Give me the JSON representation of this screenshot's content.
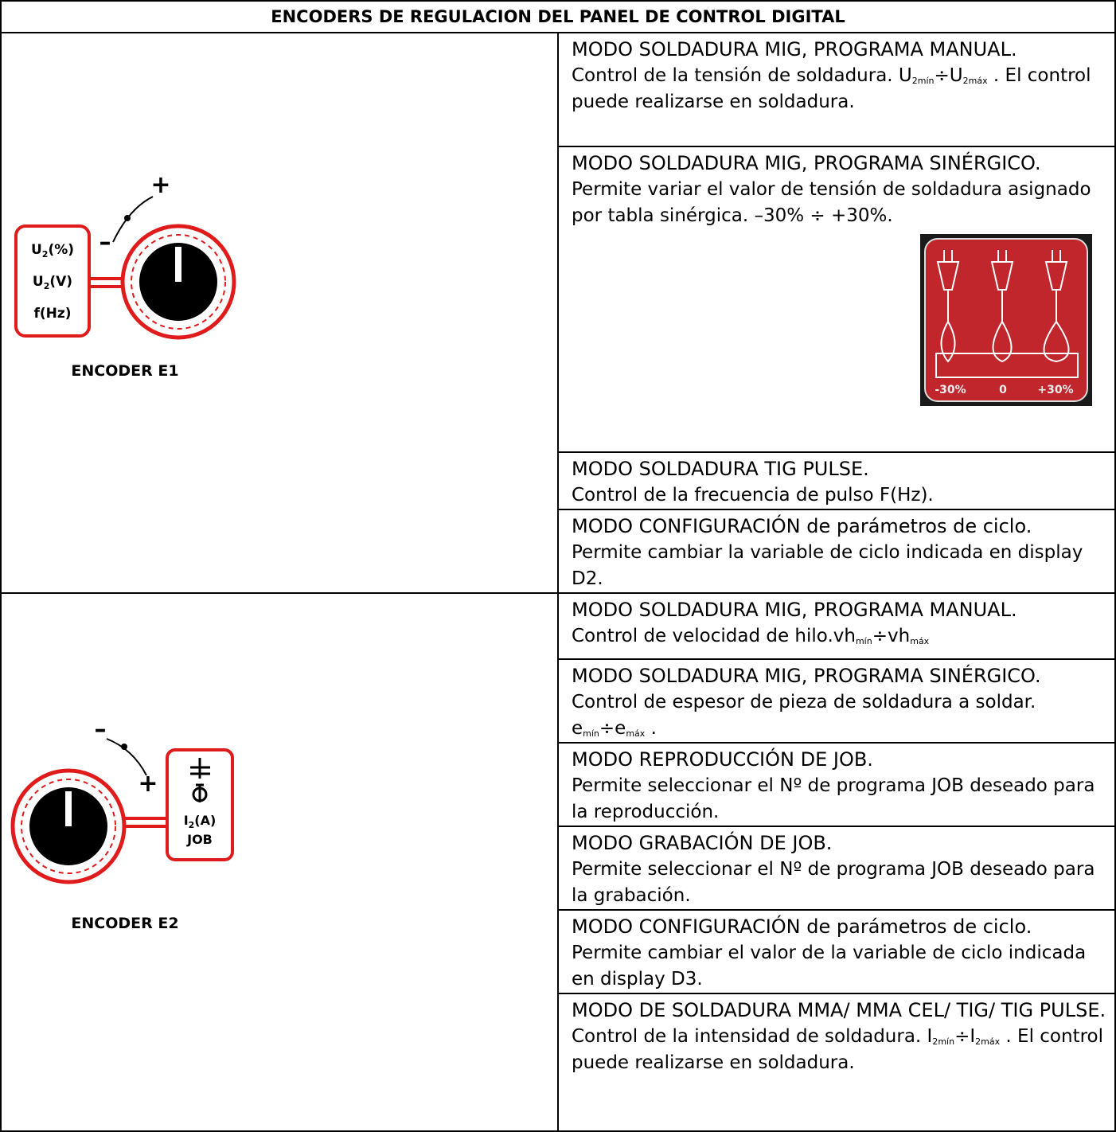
{
  "header": {
    "title": "ENCODERS DE REGULACION DEL PANEL DE CONTROL DIGITAL"
  },
  "sections": [
    {
      "encoder": {
        "label": "ENCODER E1",
        "minus": "–",
        "plus": "+",
        "labels": [
          [
            {
              "t": "U"
            },
            {
              "sub": "2"
            },
            {
              "t": "(%)"
            }
          ],
          [
            {
              "t": "U"
            },
            {
              "sub": "2"
            },
            {
              "t": "(V)"
            }
          ],
          [
            {
              "t": "f(Hz)"
            }
          ]
        ]
      },
      "rows": [
        {
          "mode": "MODO SOLDADURA MIG, PROGRAMA MANUAL.",
          "description": [
            {
              "t": "Control de la tensión de soldadura. U"
            },
            {
              "sub": "2mín"
            },
            {
              "t": "÷U"
            },
            {
              "sub": "2máx"
            },
            {
              "t": " . El control puede realizarse en soldadura."
            }
          ]
        },
        {
          "mode": "MODO SOLDADURA MIG, PROGRAMA SINÉRGICO.",
          "description": [
            {
              "t": "Permite variar el valor de tensión de soldadura asignado por tabla sinérgica. –30% ÷ +30%."
            }
          ],
          "figure": {
            "labels": [
              "-30%",
              "0",
              "+30%"
            ]
          }
        },
        {
          "mode": "MODO SOLDADURA TIG PULSE.",
          "description": [
            {
              "t": "Control de la frecuencia de pulso F(Hz)."
            }
          ]
        },
        {
          "mode": "MODO CONFIGURACIÓN de parámetros de ciclo.",
          "description": [
            {
              "t": "Permite cambiar la variable de ciclo indicada en display D2."
            }
          ]
        }
      ]
    },
    {
      "encoder": {
        "label": "ENCODER E2",
        "minus": "–",
        "plus": "+",
        "labels": [
          [
            {
              "t": "I"
            },
            {
              "sub": "2"
            },
            {
              "t": "(A)"
            }
          ],
          [
            {
              "t": "JOB"
            }
          ]
        ]
      },
      "rows": [
        {
          "mode": "MODO SOLDADURA MIG, PROGRAMA MANUAL.",
          "description": [
            {
              "t": "Control de velocidad de hilo.vh"
            },
            {
              "sub": "mín"
            },
            {
              "t": "÷vh"
            },
            {
              "sub": "máx"
            }
          ]
        },
        {
          "mode": "MODO SOLDADURA MIG, PROGRAMA SINÉRGICO.",
          "description": [
            {
              "t": "Control de espesor de pieza de soldadura a soldar. e"
            },
            {
              "sub": "mín"
            },
            {
              "t": "÷e"
            },
            {
              "sub": "máx"
            },
            {
              "t": " ."
            }
          ]
        },
        {
          "mode": "MODO REPRODUCCIÓN DE JOB.",
          "description": [
            {
              "t": "Permite seleccionar el Nº de programa JOB deseado para la reproducción."
            }
          ]
        },
        {
          "mode": "MODO GRABACIÓN DE JOB.",
          "description": [
            {
              "t": "Permite seleccionar el Nº de programa JOB deseado para la grabación."
            }
          ]
        },
        {
          "mode": "MODO CONFIGURACIÓN de parámetros de ciclo.",
          "description": [
            {
              "t": "Permite cambiar el valor de la variable de ciclo indicada en display D3."
            }
          ]
        },
        {
          "mode": "MODO DE SOLDADURA MMA/ MMA CEL/ TIG/ TIG PULSE.",
          "description": [
            {
              "t": "Control de la intensidad de soldadura. I"
            },
            {
              "sub": "2mín"
            },
            {
              "t": "÷I"
            },
            {
              "sub": "2máx"
            },
            {
              "t": " . El control puede realizarse en soldadura."
            }
          ]
        }
      ]
    }
  ]
}
